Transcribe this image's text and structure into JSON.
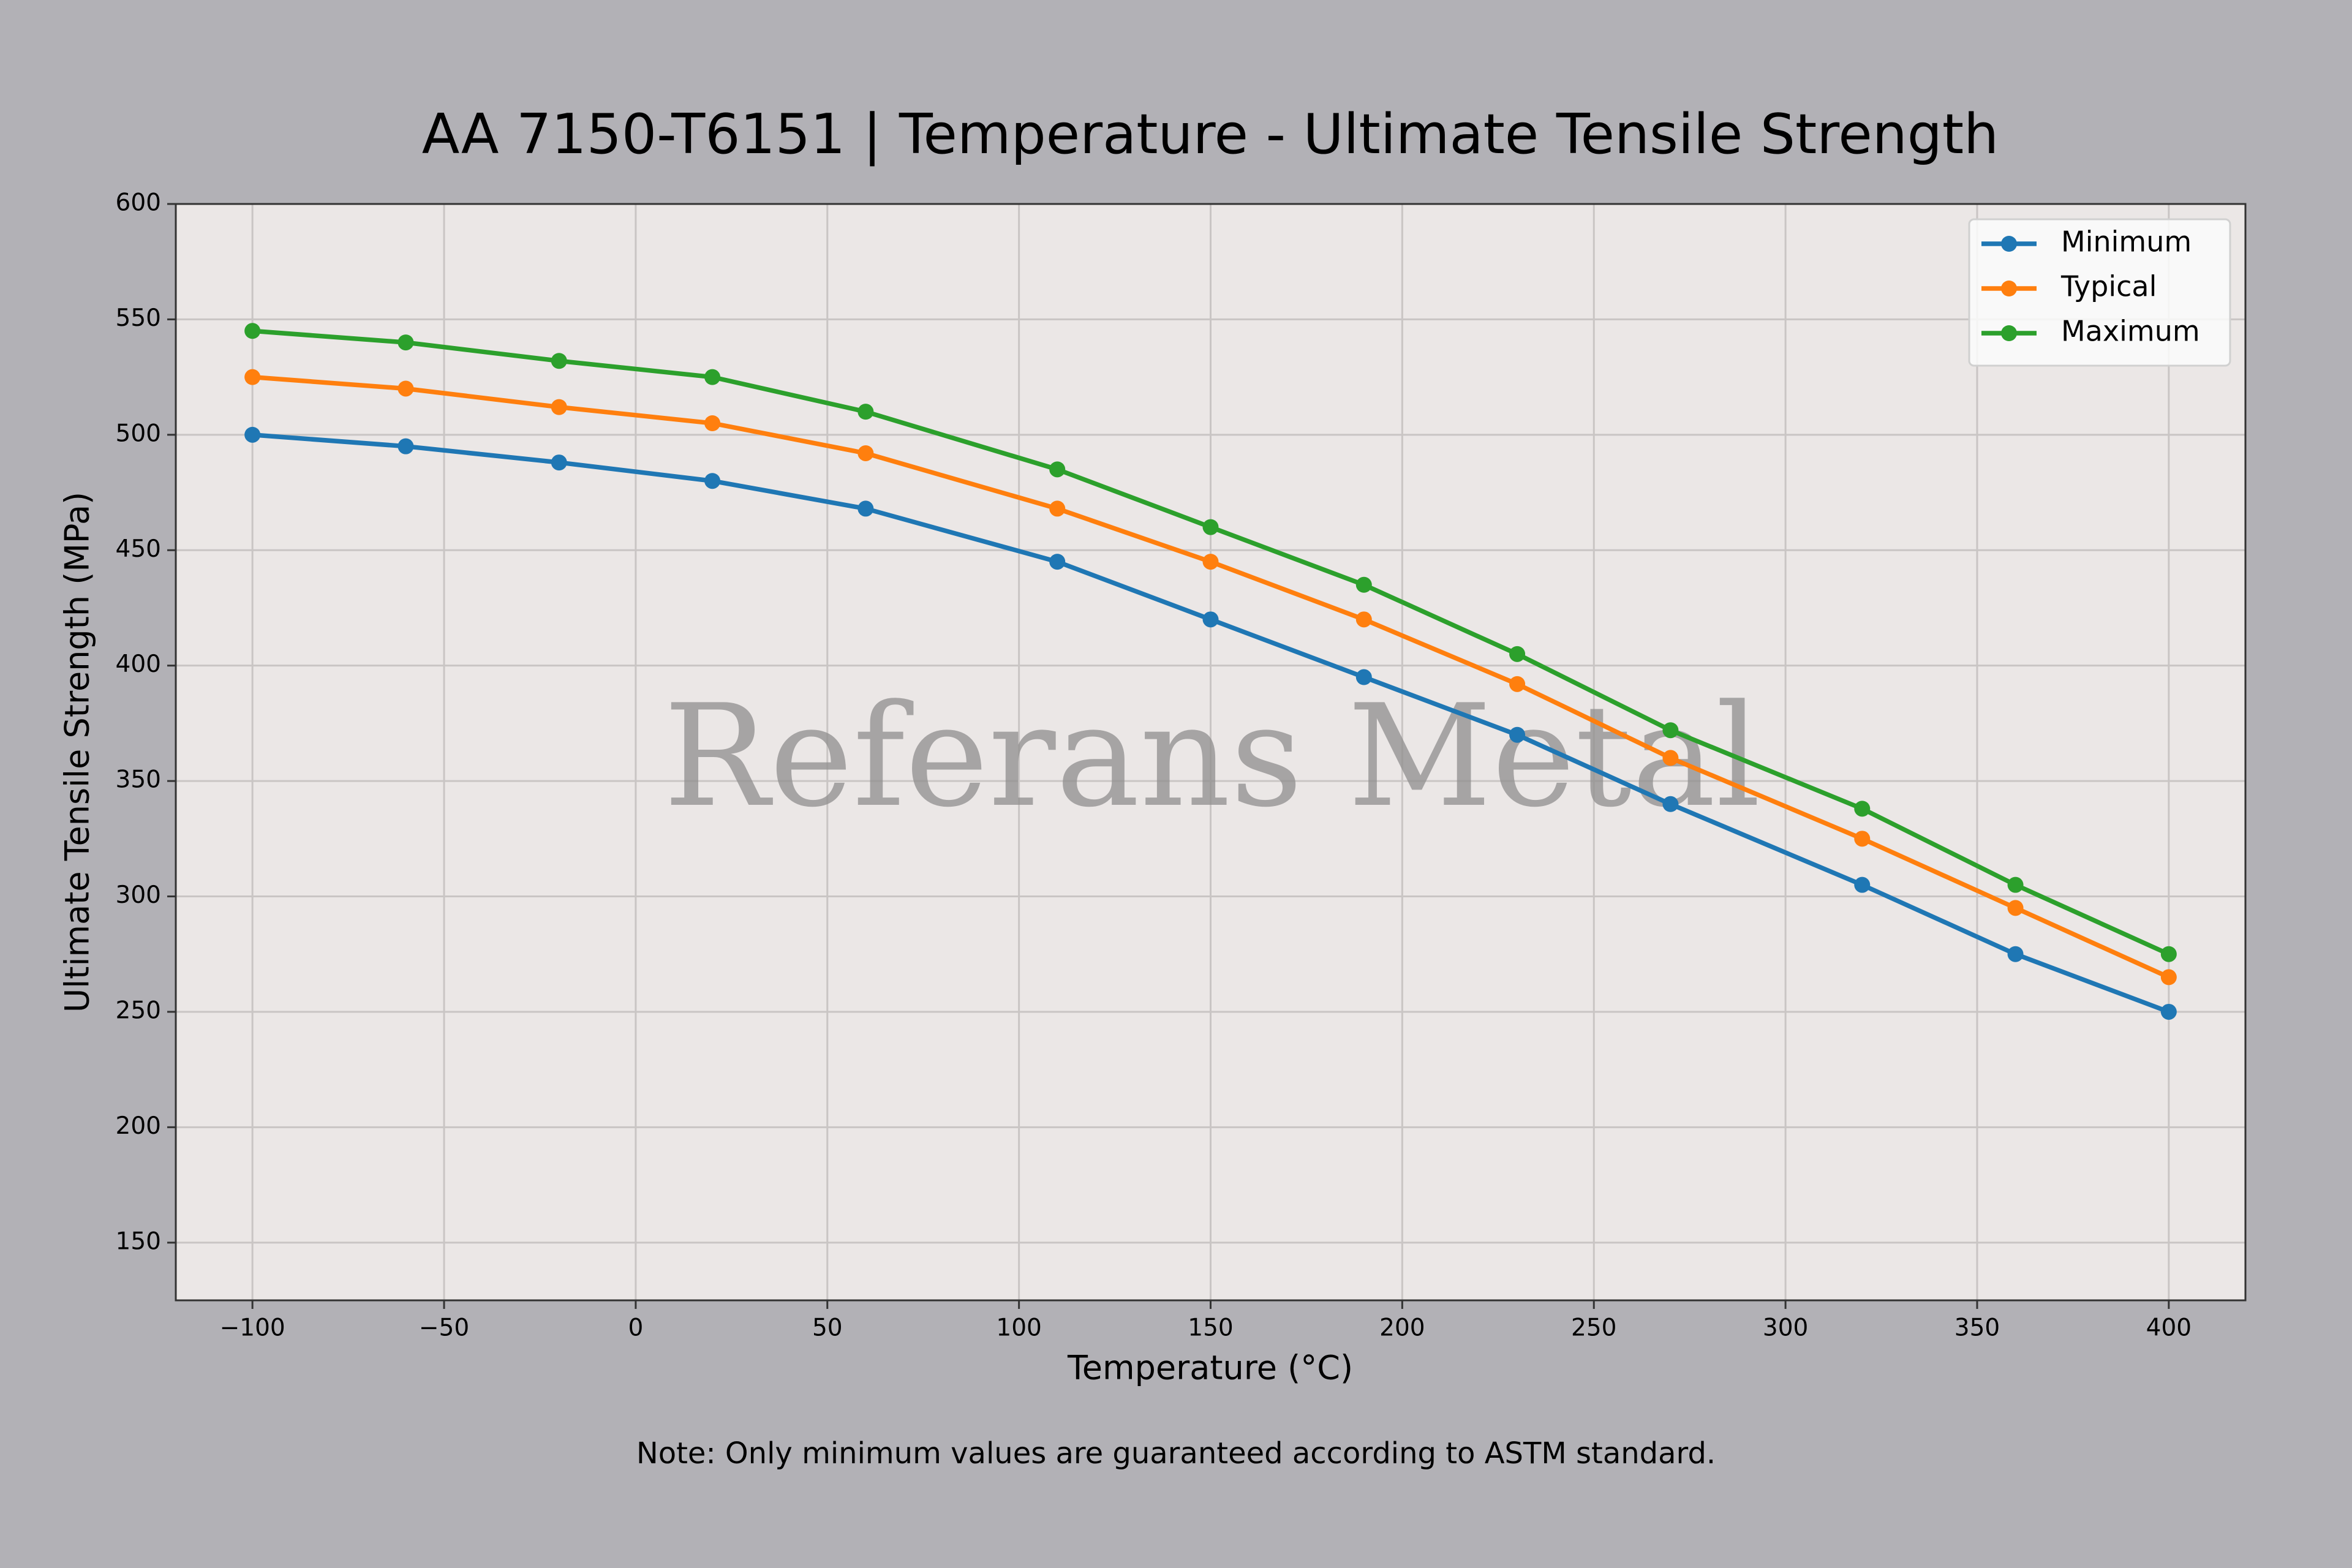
{
  "chart_data": {
    "type": "line",
    "title": "AA 7150-T6151 | Temperature - Ultimate Tensile Strength",
    "xlabel": "Temperature (°C)",
    "ylabel": "Ultimate Tensile Strength (MPa)",
    "note": "Note: Only minimum values are guaranteed according to ASTM standard.",
    "watermark": "Referans Metal",
    "x": [
      -100,
      -60,
      -20,
      20,
      60,
      110,
      150,
      190,
      230,
      270,
      320,
      360,
      400
    ],
    "series": [
      {
        "name": "Minimum",
        "color": "#1f77b4",
        "values": [
          500,
          495,
          488,
          480,
          468,
          445,
          420,
          395,
          370,
          340,
          305,
          275,
          250
        ]
      },
      {
        "name": "Typical",
        "color": "#ff7f0e",
        "values": [
          525,
          520,
          512,
          505,
          492,
          468,
          445,
          420,
          392,
          360,
          325,
          295,
          265
        ]
      },
      {
        "name": "Maximum",
        "color": "#2ca02c",
        "values": [
          545,
          540,
          532,
          525,
          510,
          485,
          460,
          435,
          405,
          372,
          338,
          305,
          275
        ]
      }
    ],
    "xlim": [
      -120,
      420
    ],
    "ylim": [
      125,
      600
    ],
    "xticks": [
      {
        "value": -100,
        "label": "−100"
      },
      {
        "value": -50,
        "label": "−50"
      },
      0,
      50,
      100,
      150,
      200,
      250,
      300,
      350,
      400
    ],
    "yticks": [
      150,
      200,
      250,
      300,
      350,
      400,
      450,
      500,
      550,
      600
    ],
    "grid": true,
    "legend": "upper right"
  }
}
